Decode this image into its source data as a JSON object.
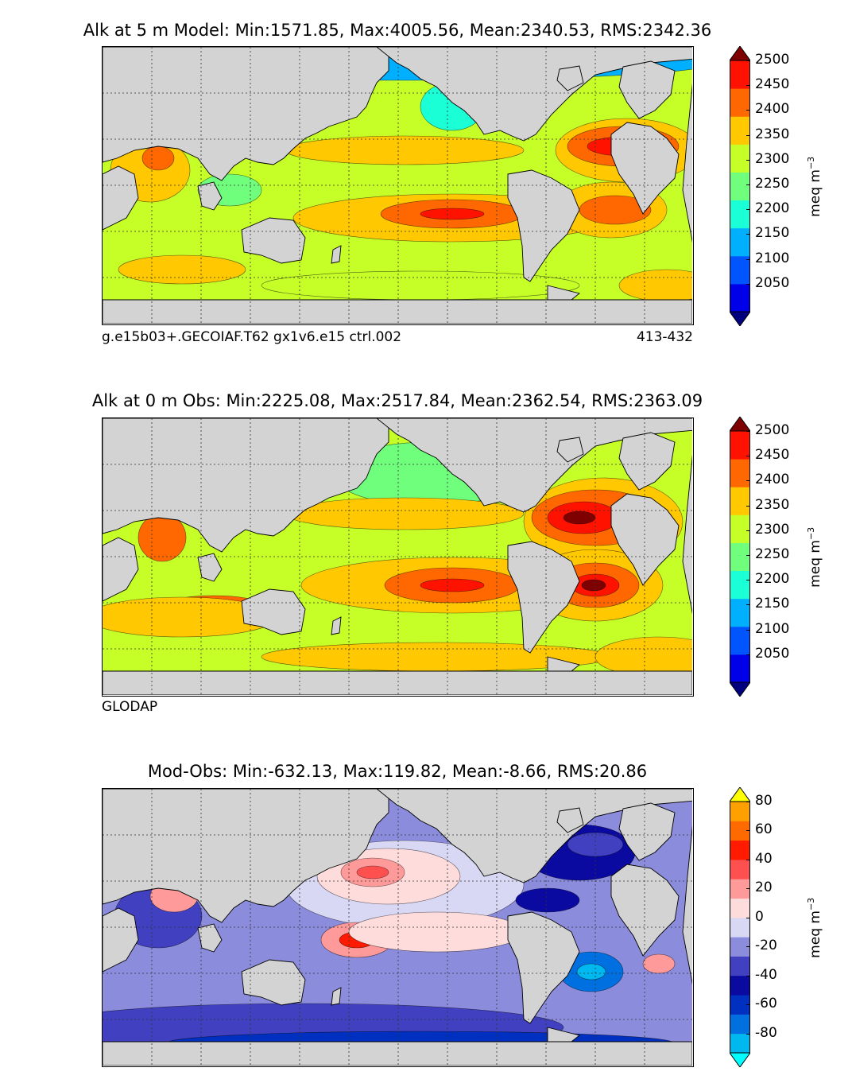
{
  "chart_data": [
    {
      "type": "heatmap",
      "title": "Alk at 5 m Model: Min:1571.85, Max:4005.56, Mean:2340.53, RMS:2342.36",
      "footer_left": "g.e15b03+.GECOIAF.T62 gx1v6.e15 ctrl.002",
      "footer_right": "413-432",
      "colorbar_label": "meq m",
      "colorbar_unit_exponent": "−3",
      "colorbar_ticks": [
        "2050",
        "2100",
        "2150",
        "2200",
        "2250",
        "2300",
        "2350",
        "2400",
        "2450",
        "2500"
      ],
      "colorbar_colors": [
        "#00007f",
        "#0000e8",
        "#0055ff",
        "#00b0ff",
        "#1affd5",
        "#70ff7c",
        "#c6ff28",
        "#ffc800",
        "#ff6800",
        "#ff1300",
        "#7f0000"
      ],
      "grid": true
    },
    {
      "type": "heatmap",
      "title": "Alk at 0 m Obs: Min:2225.08, Max:2517.84, Mean:2362.54, RMS:2363.09",
      "footer_left": "GLODAP",
      "colorbar_label": "meq m",
      "colorbar_unit_exponent": "−3",
      "colorbar_ticks": [
        "2050",
        "2100",
        "2150",
        "2200",
        "2250",
        "2300",
        "2350",
        "2400",
        "2450",
        "2500"
      ],
      "colorbar_colors": [
        "#00007f",
        "#0000e8",
        "#0055ff",
        "#00b0ff",
        "#1affd5",
        "#70ff7c",
        "#c6ff28",
        "#ffc800",
        "#ff6800",
        "#ff1300",
        "#7f0000"
      ],
      "grid": true
    },
    {
      "type": "heatmap",
      "title": "Mod-Obs: Min:-632.13, Max:119.82, Mean:-8.66, RMS:20.86",
      "colorbar_label": "meq m",
      "colorbar_unit_exponent": "−3",
      "colorbar_ticks": [
        "-80",
        "-60",
        "-40",
        "-20",
        "0",
        "20",
        "40",
        "60",
        "80"
      ],
      "colorbar_colors": [
        "#00ffff",
        "#00b8f0",
        "#0070e0",
        "#0030c0",
        "#0a0aa0",
        "#4040c0",
        "#8c8cdc",
        "#d8d8f4",
        "#ffdcdc",
        "#ff9a9a",
        "#ff5050",
        "#ff1a00",
        "#ff6a00",
        "#ffa000",
        "#ffff00"
      ],
      "grid": true
    }
  ]
}
